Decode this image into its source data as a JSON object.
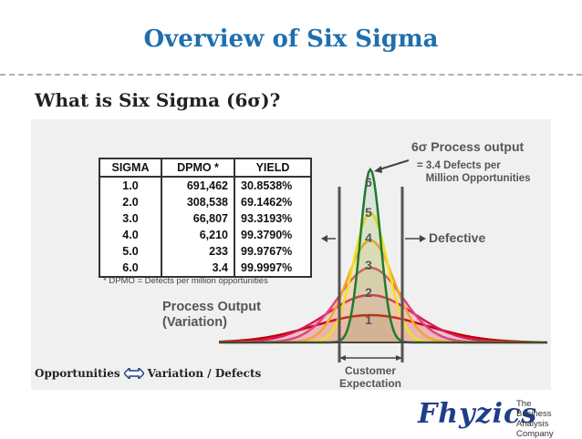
{
  "slide": {
    "title": "Overview of Six Sigma",
    "subtitle": "What is Six Sigma (6σ)?"
  },
  "table": {
    "headers": [
      "SIGMA",
      "DPMO *",
      "YIELD"
    ],
    "rows": [
      [
        "1.0",
        "691,462",
        "30.8538%"
      ],
      [
        "2.0",
        "308,538",
        "69.1462%"
      ],
      [
        "3.0",
        "66,807",
        "93.3193%"
      ],
      [
        "4.0",
        "6,210",
        "99.3790%"
      ],
      [
        "5.0",
        "233",
        "99.9767%"
      ],
      [
        "6.0",
        "3.4",
        "99.9997%"
      ]
    ],
    "footnote": "* DPMO = Defects per million opportunities"
  },
  "diagram": {
    "process_output_line1": "Process Output",
    "process_output_line2": "(Variation)",
    "defective": "Defective",
    "six_sigma_output": "6σ Process output",
    "six_sigma_detail": "= 3.4 Defects per\n   Million Opportunities",
    "customer_line1": "Customer",
    "customer_line2": "Expectation",
    "curve_labels": [
      "1",
      "2",
      "3",
      "4",
      "5",
      "6"
    ],
    "curve_colors": [
      "#c00000",
      "#d81b60",
      "#e0447a",
      "#f5a623",
      "#f0e020",
      "#1e7b2c"
    ]
  },
  "footer": {
    "opportunities": "Opportunities",
    "relation": "Variation / Defects",
    "logo_word": "Fhyzics",
    "logo_tag1": "The",
    "logo_tag2": "Business Analysis",
    "logo_tag3": "Company"
  }
}
